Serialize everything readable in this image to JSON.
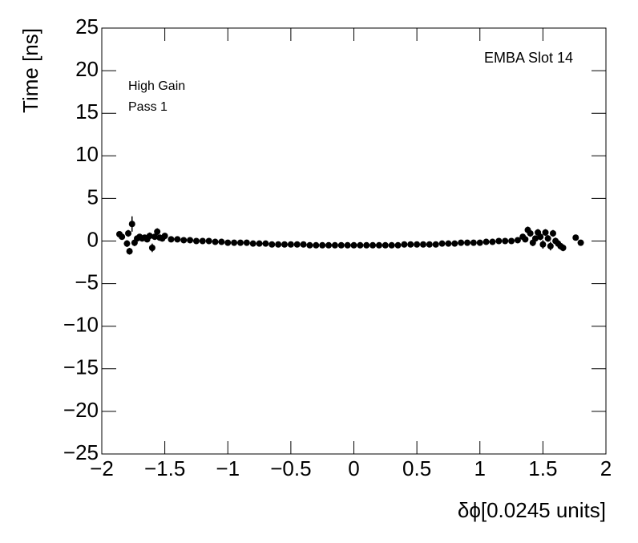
{
  "chart_data": {
    "type": "scatter",
    "x_label": "δϕ[0.0245 units]",
    "y_label": "Time [ns]",
    "annotations": [
      "EMBA Slot 14",
      "High Gain",
      "Pass 1"
    ],
    "color": "#000000",
    "x": [
      -1.86,
      -1.84,
      -1.8,
      -1.79,
      -1.78,
      -1.76,
      -1.74,
      -1.72,
      -1.7,
      -1.68,
      -1.66,
      -1.64,
      -1.62,
      -1.6,
      -1.58,
      -1.56,
      -1.54,
      -1.52,
      -1.5,
      -1.45,
      -1.4,
      -1.35,
      -1.3,
      -1.25,
      -1.2,
      -1.15,
      -1.1,
      -1.05,
      -1.0,
      -0.95,
      -0.9,
      -0.85,
      -0.8,
      -0.75,
      -0.7,
      -0.65,
      -0.6,
      -0.55,
      -0.5,
      -0.45,
      -0.4,
      -0.35,
      -0.3,
      -0.25,
      -0.2,
      -0.15,
      -0.1,
      -0.05,
      0,
      0.05,
      0.1,
      0.15,
      0.2,
      0.25,
      0.3,
      0.35,
      0.4,
      0.45,
      0.5,
      0.55,
      0.6,
      0.65,
      0.7,
      0.75,
      0.8,
      0.85,
      0.9,
      0.95,
      1.0,
      1.05,
      1.1,
      1.15,
      1.2,
      1.25,
      1.3,
      1.34,
      1.36,
      1.38,
      1.4,
      1.42,
      1.44,
      1.46,
      1.48,
      1.5,
      1.52,
      1.54,
      1.56,
      1.58,
      1.6,
      1.62,
      1.64,
      1.66,
      1.76,
      1.8
    ],
    "values": [
      0.8,
      0.5,
      -0.3,
      0.9,
      -1.2,
      2.0,
      -0.2,
      0.3,
      0.5,
      0.3,
      0.4,
      0.2,
      0.6,
      -0.8,
      0.5,
      1.1,
      0.4,
      0.3,
      0.6,
      0.2,
      0.2,
      0.1,
      0.1,
      0.0,
      0.0,
      0.0,
      -0.1,
      -0.1,
      -0.2,
      -0.2,
      -0.2,
      -0.2,
      -0.3,
      -0.3,
      -0.3,
      -0.4,
      -0.4,
      -0.4,
      -0.4,
      -0.4,
      -0.4,
      -0.5,
      -0.5,
      -0.5,
      -0.5,
      -0.5,
      -0.5,
      -0.5,
      -0.5,
      -0.5,
      -0.5,
      -0.5,
      -0.5,
      -0.5,
      -0.5,
      -0.5,
      -0.4,
      -0.4,
      -0.4,
      -0.4,
      -0.4,
      -0.4,
      -0.3,
      -0.3,
      -0.3,
      -0.2,
      -0.2,
      -0.2,
      -0.2,
      -0.1,
      -0.1,
      0.0,
      0.0,
      0.0,
      0.1,
      0.5,
      0.2,
      1.3,
      0.9,
      -0.2,
      0.3,
      1.0,
      0.5,
      -0.4,
      1.0,
      0.3,
      -0.6,
      0.9,
      0.0,
      -0.3,
      -0.6,
      -0.8,
      0.4,
      -0.2
    ],
    "errors": [
      0.3,
      0.3,
      0.4,
      0.4,
      0.4,
      0.9,
      0.4,
      0.3,
      0.3,
      0.3,
      0.3,
      0.3,
      0.4,
      0.5,
      0.3,
      0.4,
      0.3,
      0.2,
      0.3,
      0.2,
      0.2,
      0.1,
      0.1,
      0.1,
      0.1,
      0.1,
      0.1,
      0.1,
      0.1,
      0.1,
      0.1,
      0.1,
      0.1,
      0.1,
      0.1,
      0.1,
      0.1,
      0.1,
      0.1,
      0.1,
      0.1,
      0.1,
      0.1,
      0.1,
      0.1,
      0.1,
      0.1,
      0.1,
      0.1,
      0.1,
      0.1,
      0.1,
      0.1,
      0.1,
      0.1,
      0.1,
      0.1,
      0.1,
      0.1,
      0.1,
      0.1,
      0.1,
      0.1,
      0.1,
      0.1,
      0.1,
      0.1,
      0.1,
      0.1,
      0.1,
      0.1,
      0.1,
      0.1,
      0.1,
      0.2,
      0.3,
      0.3,
      0.4,
      0.4,
      0.4,
      0.3,
      0.4,
      0.4,
      0.5,
      0.4,
      0.4,
      0.5,
      0.4,
      0.4,
      0.4,
      0.4,
      0.4,
      0.3,
      0.3
    ],
    "xlim": [
      -2,
      2
    ],
    "xticks": [
      {
        "value": -2,
        "label": "−2"
      },
      {
        "value": -1.5,
        "label": "−1.5"
      },
      {
        "value": -1,
        "label": "−1"
      },
      {
        "value": -0.5,
        "label": "−0.5"
      },
      0,
      0.5,
      1,
      1.5,
      2
    ],
    "ylim": [
      -25,
      25
    ],
    "yticks": [
      {
        "value": -25,
        "label": "−25"
      },
      {
        "value": -20,
        "label": "−20"
      },
      {
        "value": -15,
        "label": "−15"
      },
      {
        "value": -10,
        "label": "−10"
      },
      {
        "value": -5,
        "label": "−5"
      },
      0,
      5,
      10,
      15,
      20,
      25
    ]
  }
}
